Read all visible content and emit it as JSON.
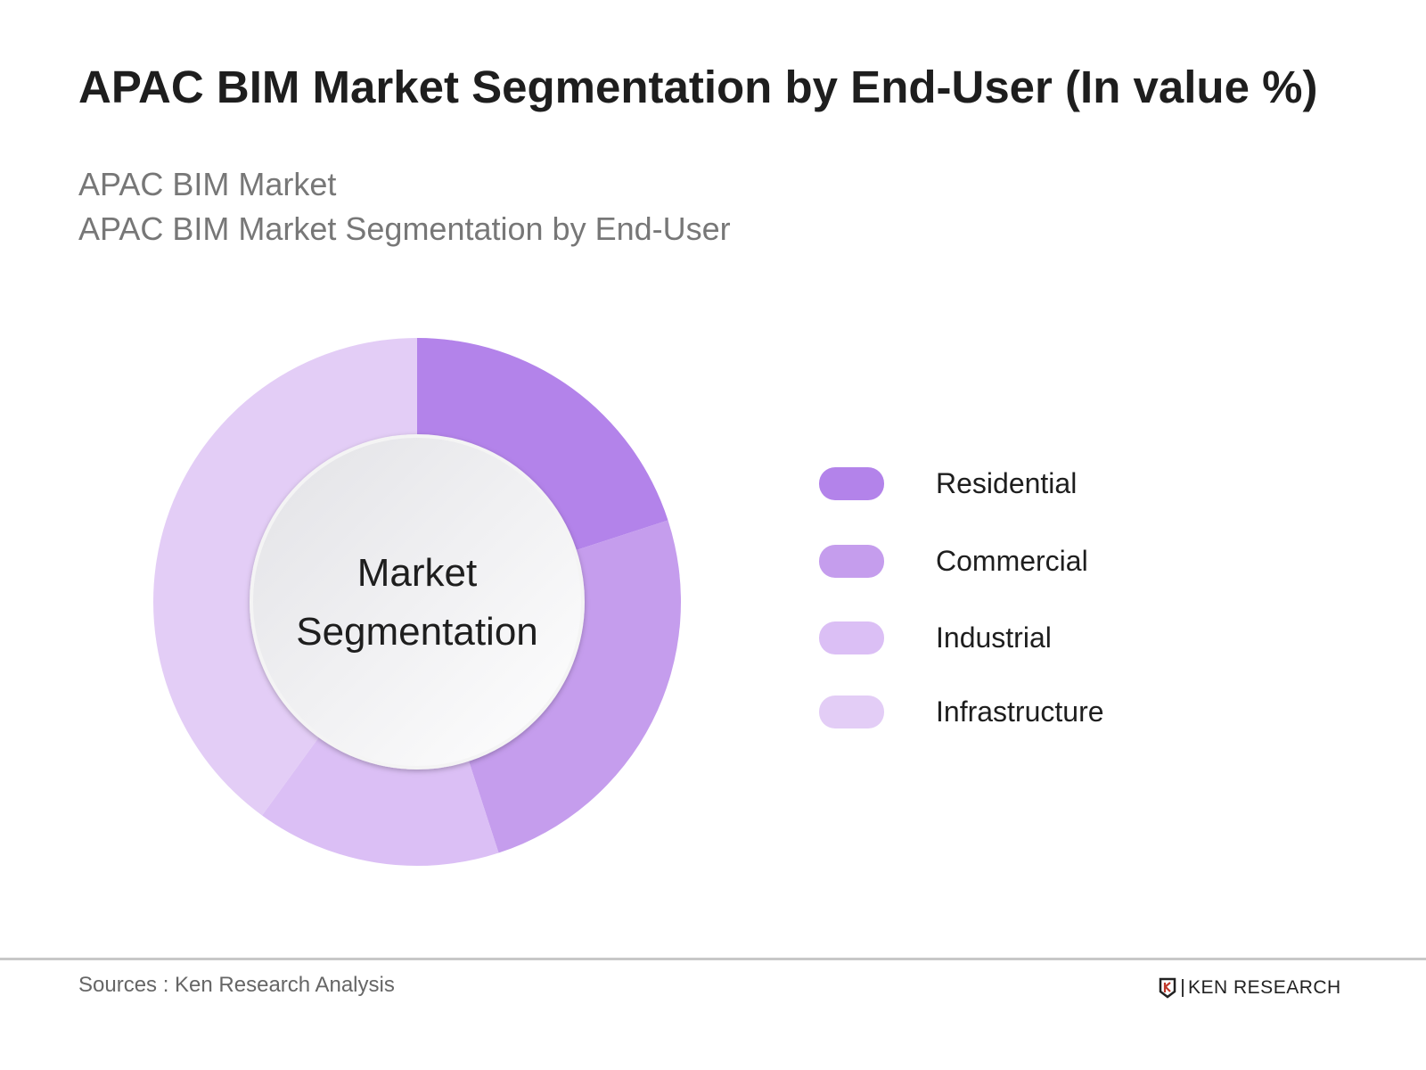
{
  "title": "APAC BIM Market Segmentation by End-User (In value %)",
  "subtitle_lines": [
    "APAC BIM Market",
    "APAC BIM Market Segmentation by End-User"
  ],
  "chart_data": {
    "type": "pie",
    "variant": "donut",
    "center_label": [
      "Market",
      "Segmentation"
    ],
    "categories": [
      "Residential",
      "Commercial",
      "Industrial",
      "Infrastructure"
    ],
    "values": [
      20,
      25,
      15,
      40
    ],
    "unit": "%",
    "colors": [
      "#b383ea",
      "#c59ded",
      "#dbbff5",
      "#e3cdf6"
    ],
    "legend_position": "right"
  },
  "footer": {
    "sources": "Sources : Ken Research Analysis",
    "logo_text": "KEN RESEARCH"
  }
}
